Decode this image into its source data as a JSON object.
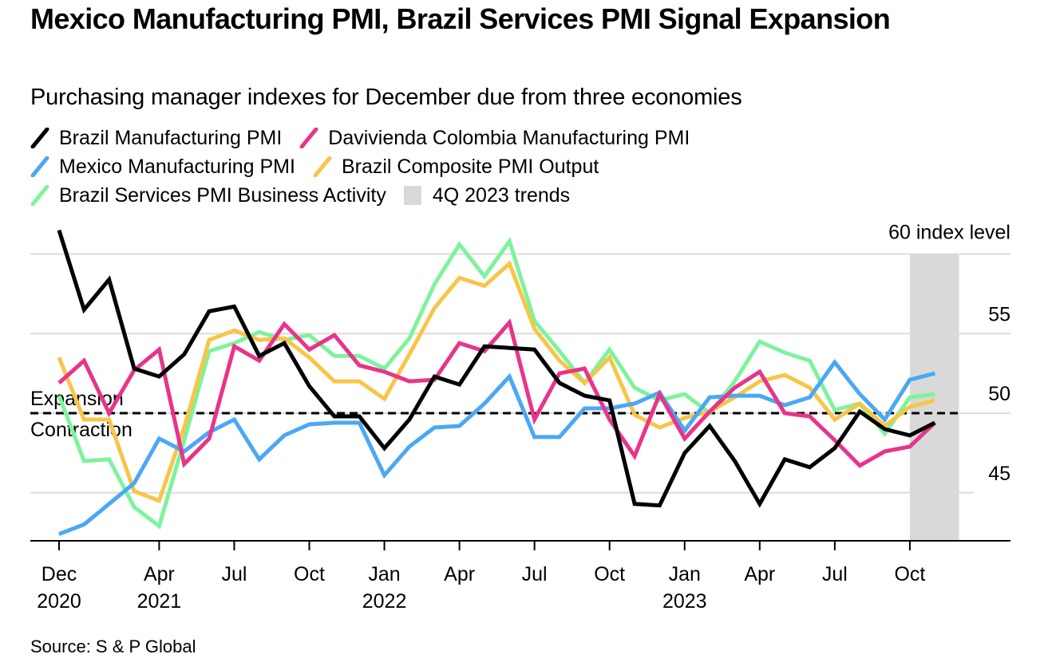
{
  "title": "Mexico Manufacturing PMI, Brazil Services PMI Signal Expansion",
  "subtitle": "Purchasing manager indexes for December due from three economies",
  "source": "Source: S & P Global",
  "legend": [
    {
      "label": "Brazil Manufacturing PMI",
      "color": "#000000",
      "kind": "line"
    },
    {
      "label": "Davivienda Colombia Manufacturing PMI",
      "color": "#e8348a",
      "kind": "line"
    },
    {
      "label": "Mexico Manufacturing PMI",
      "color": "#4aa8f5",
      "kind": "line"
    },
    {
      "label": "Brazil Composite PMI Output",
      "color": "#f7c548",
      "kind": "line"
    },
    {
      "label": "Brazil Services PMI Business Activity",
      "color": "#7ef39b",
      "kind": "line"
    },
    {
      "label": "4Q 2023 trends",
      "color": "#d9d9d9",
      "kind": "box"
    }
  ],
  "chart_data": {
    "type": "line",
    "title": "Mexico Manufacturing PMI, Brazil Services PMI Signal Expansion",
    "subtitle": "Purchasing manager indexes for December due from three economies",
    "xlabel": "",
    "ylabel": "index level",
    "y_unit_label": "60 index level",
    "ylim": [
      42,
      61
    ],
    "yticks": [
      45,
      50,
      55,
      60
    ],
    "ytick_labels": [
      "45",
      "50",
      "55",
      "60 index level"
    ],
    "grid": true,
    "legend_position": "top-left",
    "x": [
      "2020-12",
      "2021-01",
      "2021-02",
      "2021-03",
      "2021-04",
      "2021-05",
      "2021-06",
      "2021-07",
      "2021-08",
      "2021-09",
      "2021-10",
      "2021-11",
      "2021-12",
      "2022-01",
      "2022-02",
      "2022-03",
      "2022-04",
      "2022-05",
      "2022-06",
      "2022-07",
      "2022-08",
      "2022-09",
      "2022-10",
      "2022-11",
      "2022-12",
      "2023-01",
      "2023-02",
      "2023-03",
      "2023-04",
      "2023-05",
      "2023-06",
      "2023-07",
      "2023-08",
      "2023-09",
      "2023-10",
      "2023-11"
    ],
    "xticks": [
      {
        "index": 0,
        "label": "Dec",
        "year": "2020"
      },
      {
        "index": 4,
        "label": "Apr",
        "year": "2021"
      },
      {
        "index": 7,
        "label": "Jul",
        "year": ""
      },
      {
        "index": 10,
        "label": "Oct",
        "year": ""
      },
      {
        "index": 13,
        "label": "Jan",
        "year": "2022"
      },
      {
        "index": 16,
        "label": "Apr",
        "year": ""
      },
      {
        "index": 19,
        "label": "Jul",
        "year": ""
      },
      {
        "index": 22,
        "label": "Oct",
        "year": ""
      },
      {
        "index": 25,
        "label": "Jan",
        "year": "2023"
      },
      {
        "index": 28,
        "label": "Apr",
        "year": ""
      },
      {
        "index": 31,
        "label": "Jul",
        "year": ""
      },
      {
        "index": 34,
        "label": "Oct",
        "year": ""
      }
    ],
    "reference_line": {
      "value": 50,
      "label_above": "Expansion",
      "label_below": "Contraction",
      "style": "dashed"
    },
    "shaded_region": {
      "from_index": 34,
      "to_index": 36,
      "label": "4Q 2023 trends",
      "color": "#d9d9d9"
    },
    "series": [
      {
        "name": "Brazil Manufacturing PMI",
        "color": "#000000",
        "values": [
          61.5,
          56.5,
          58.4,
          52.8,
          52.3,
          53.7,
          56.4,
          56.7,
          53.6,
          54.4,
          51.7,
          49.8,
          49.8,
          47.8,
          49.6,
          52.3,
          51.8,
          54.2,
          54.1,
          54.0,
          51.9,
          51.1,
          50.8,
          44.3,
          44.2,
          47.5,
          49.2,
          47.0,
          44.3,
          47.1,
          46.6,
          47.8,
          50.1,
          49.0,
          48.6,
          49.4
        ]
      },
      {
        "name": "Davivienda Colombia Manufacturing PMI",
        "color": "#e8348a",
        "values": [
          51.9,
          53.3,
          50.0,
          52.7,
          54.0,
          46.8,
          48.4,
          54.2,
          53.3,
          55.6,
          54.0,
          54.9,
          53.0,
          52.6,
          52.0,
          52.1,
          54.4,
          53.9,
          55.7,
          49.6,
          52.5,
          52.8,
          49.6,
          47.3,
          51.2,
          48.4,
          50.1,
          51.6,
          52.6,
          50.0,
          49.8,
          48.3,
          46.7,
          47.6,
          47.9,
          49.4
        ]
      },
      {
        "name": "Mexico Manufacturing PMI",
        "color": "#4aa8f5",
        "values": [
          42.4,
          43.0,
          44.3,
          45.6,
          48.4,
          47.6,
          48.8,
          49.6,
          47.1,
          48.6,
          49.3,
          49.4,
          49.4,
          46.1,
          47.9,
          49.1,
          49.2,
          50.6,
          52.3,
          48.5,
          48.5,
          50.3,
          50.3,
          50.6,
          51.3,
          48.9,
          51.0,
          51.1,
          51.1,
          50.5,
          51.0,
          53.2,
          51.2,
          49.6,
          52.1,
          52.5
        ]
      },
      {
        "name": "Brazil Composite PMI Output",
        "color": "#f7c548",
        "values": [
          53.5,
          49.6,
          49.6,
          45.1,
          44.5,
          49.1,
          54.6,
          55.2,
          54.6,
          54.7,
          53.5,
          52.0,
          52.0,
          50.9,
          53.7,
          56.6,
          58.5,
          58.0,
          59.4,
          55.3,
          53.3,
          51.9,
          53.5,
          49.9,
          49.1,
          49.7,
          50.1,
          51.0,
          52.0,
          52.4,
          51.6,
          49.6,
          50.6,
          49.2,
          50.4,
          50.8
        ]
      },
      {
        "name": "Brazil Services PMI Business Activity",
        "color": "#7ef39b",
        "values": [
          51.1,
          47.0,
          47.1,
          44.1,
          42.9,
          48.3,
          53.9,
          54.4,
          55.1,
          54.6,
          54.9,
          53.6,
          53.6,
          52.8,
          54.7,
          58.1,
          60.6,
          58.6,
          60.8,
          55.8,
          53.9,
          51.9,
          54.0,
          51.6,
          50.8,
          51.2,
          50.0,
          52.0,
          54.5,
          53.8,
          53.3,
          50.2,
          50.6,
          48.7,
          51.0,
          51.2
        ]
      }
    ]
  }
}
